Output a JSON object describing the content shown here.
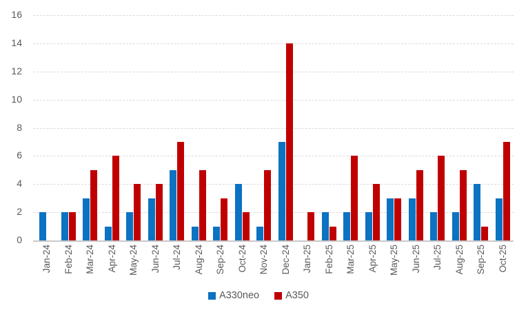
{
  "chart_data": {
    "type": "bar",
    "title": "",
    "xlabel": "",
    "ylabel": "",
    "categories": [
      "Jan-24",
      "Feb-24",
      "Mar-24",
      "Apr-24",
      "May-24",
      "Jun-24",
      "Jul-24",
      "Aug-24",
      "Sep-24",
      "Oct-24",
      "Nov-24",
      "Dec-24",
      "Jan-25",
      "Feb-25",
      "Mar-25",
      "Apr-25",
      "May-25",
      "Jun-25",
      "Jul-25",
      "Aug-25",
      "Sep-25",
      "Oct-25"
    ],
    "series": [
      {
        "name": "A330neo",
        "color": "#0C72C2",
        "values": [
          2,
          2,
          3,
          1,
          2,
          3,
          5,
          1,
          1,
          4,
          1,
          7,
          0,
          2,
          2,
          2,
          3,
          3,
          2,
          2,
          4,
          3
        ]
      },
      {
        "name": "A350",
        "color": "#C00000",
        "values": [
          0,
          2,
          5,
          6,
          4,
          4,
          7,
          5,
          3,
          2,
          5,
          14,
          2,
          1,
          6,
          4,
          3,
          5,
          6,
          5,
          1,
          7
        ]
      }
    ],
    "ylim": [
      0,
      16
    ],
    "y_tick_step": 2,
    "y_tick_labels": [
      "0",
      "2",
      "4",
      "6",
      "8",
      "10",
      "12",
      "14",
      "16"
    ],
    "grid": "horizontal-dashed",
    "legend_position": "bottom-center"
  },
  "colors": {
    "background": "#FFFFFF",
    "gridline": "#D9D9D9",
    "axis_line": "#C9C9C9",
    "text": "#595959"
  }
}
